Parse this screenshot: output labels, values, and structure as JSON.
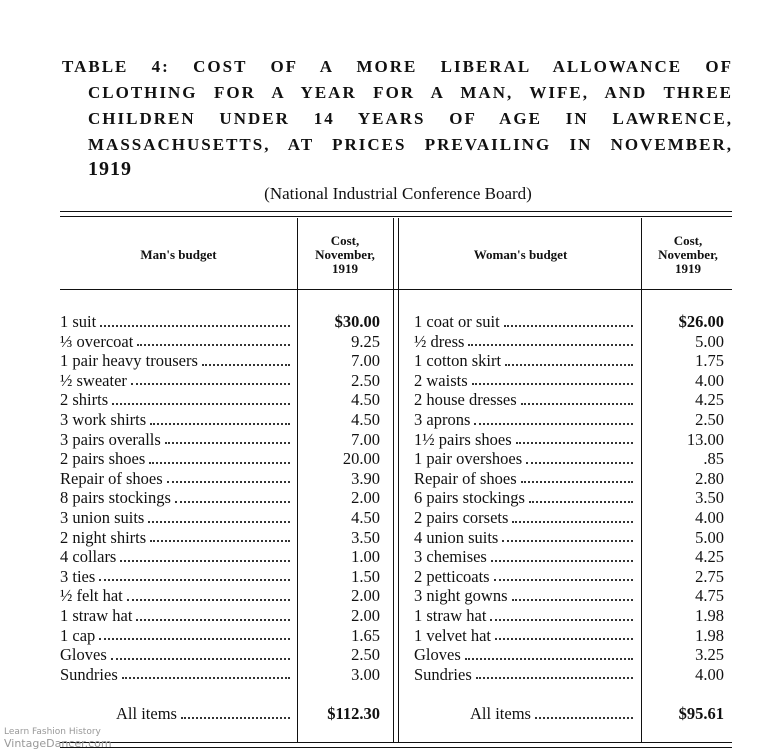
{
  "title_lines": [
    "TABLE 4: COST OF A MORE LIBERAL ALLOWANCE OF",
    "CLOTHING FOR A YEAR FOR A MAN, WIFE, AND THREE",
    "CHILDREN UNDER 14 YEARS OF AGE IN LAWRENCE,",
    "MASSACHUSETTS, AT PRICES PREVAILING IN NOVEMBER,",
    "1919"
  ],
  "subtitle": "(National Industrial Conference Board)",
  "table": {
    "header": [
      "Man's budget",
      "Cost, November, 1919",
      "Woman's budget",
      "Cost, November, 1919"
    ],
    "rows": [
      [
        "1 suit",
        "$30.00",
        "1 coat or suit",
        "$26.00"
      ],
      [
        "⅓ overcoat",
        "9.25",
        "½ dress",
        "5.00"
      ],
      [
        "1 pair heavy trousers",
        "7.00",
        "1 cotton skirt",
        "1.75"
      ],
      [
        "½ sweater",
        "2.50",
        "2 waists",
        "4.00"
      ],
      [
        "2 shirts",
        "4.50",
        "2 house dresses",
        "4.25"
      ],
      [
        "3 work shirts",
        "4.50",
        "3 aprons",
        "2.50"
      ],
      [
        "3 pairs overalls",
        "7.00",
        "1½ pairs shoes",
        "13.00"
      ],
      [
        "2 pairs shoes",
        "20.00",
        "1 pair overshoes",
        ".85"
      ],
      [
        "Repair of shoes",
        "3.90",
        "Repair of shoes",
        "2.80"
      ],
      [
        "8 pairs stockings",
        "2.00",
        "6 pairs stockings",
        "3.50"
      ],
      [
        "3 union suits",
        "4.50",
        "2 pairs corsets",
        "4.00"
      ],
      [
        "2 night shirts",
        "3.50",
        "4 union suits",
        "5.00"
      ],
      [
        "4 collars",
        "1.00",
        "3 chemises",
        "4.25"
      ],
      [
        "3 ties",
        "1.50",
        "2 petticoats",
        "2.75"
      ],
      [
        "½ felt hat",
        "2.00",
        "3 night gowns",
        "4.75"
      ],
      [
        "1 straw hat",
        "2.00",
        "1 straw hat",
        "1.98"
      ],
      [
        "1 cap",
        "1.65",
        "1 velvet hat",
        "1.98"
      ],
      [
        "Gloves",
        "2.50",
        "Gloves",
        "3.25"
      ],
      [
        "Sundries",
        "3.00",
        "Sundries",
        "4.00"
      ]
    ],
    "total": [
      "All items",
      "$112.30",
      "All items",
      "$95.61"
    ]
  },
  "watermark": [
    "Learn Fashion History",
    "VintageDancer.com"
  ]
}
